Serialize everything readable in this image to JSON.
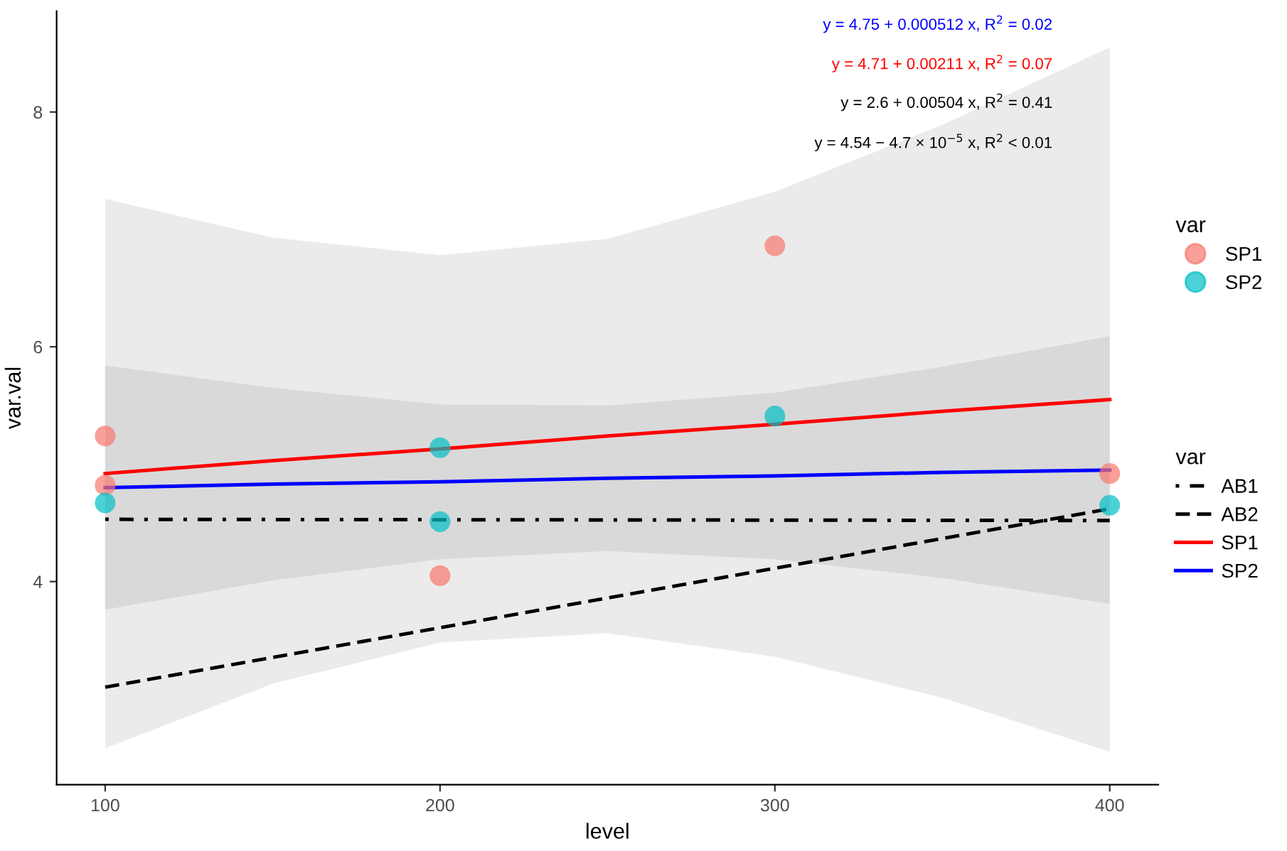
{
  "chart_data": {
    "type": "line",
    "xlabel": "level",
    "ylabel": "var.val",
    "legend_title": "var",
    "xlim": [
      85.5,
      414.5
    ],
    "ylim": [
      2.27,
      8.86
    ],
    "xticks": [
      100,
      200,
      300,
      400
    ],
    "yticks": [
      4,
      6,
      8
    ],
    "grid": false,
    "legend": "right",
    "series": [
      {
        "name": "SP1",
        "type": "scatter",
        "marker": "circle",
        "color": "#f8766d",
        "x": [
          100,
          100,
          200,
          300,
          400
        ],
        "values": [
          5.24,
          4.82,
          4.05,
          6.86,
          4.92
        ]
      },
      {
        "name": "SP2",
        "type": "scatter",
        "marker": "circle",
        "color": "#00bfc4",
        "x": [
          100,
          200,
          200,
          300,
          400
        ],
        "values": [
          4.67,
          5.14,
          4.51,
          5.41,
          4.65
        ]
      },
      {
        "name": "AB1",
        "type": "line",
        "line_style": "dashdot",
        "color": "#000000",
        "x": [
          100,
          400
        ],
        "values": [
          4.53,
          4.52
        ]
      },
      {
        "name": "AB2",
        "type": "line",
        "line_style": "dashed",
        "color": "#000000",
        "x": [
          100,
          400
        ],
        "values": [
          3.1,
          4.62
        ]
      },
      {
        "name": "SP1",
        "type": "line",
        "line_style": "solid",
        "color": "#ff0000",
        "x": [
          100,
          150,
          200,
          250,
          300,
          350,
          400
        ],
        "values": [
          4.92,
          5.03,
          5.13,
          5.24,
          5.34,
          5.45,
          5.55
        ],
        "lower": [
          2.58,
          3.13,
          3.48,
          3.56,
          3.36,
          3.01,
          2.55
        ],
        "upper": [
          7.26,
          6.93,
          6.78,
          6.92,
          7.32,
          7.89,
          8.55
        ]
      },
      {
        "name": "SP2",
        "type": "line",
        "line_style": "solid",
        "color": "#0000ff",
        "x": [
          100,
          150,
          200,
          250,
          300,
          350,
          400
        ],
        "values": [
          4.8,
          4.83,
          4.85,
          4.88,
          4.9,
          4.93,
          4.95
        ],
        "lower": [
          3.76,
          4.01,
          4.19,
          4.26,
          4.19,
          4.03,
          3.81
        ],
        "upper": [
          5.84,
          5.65,
          5.51,
          5.5,
          5.61,
          5.83,
          6.09
        ]
      }
    ],
    "annotations": [
      "y = 4.75 + 0.000512 x, R$^{2}$ = 0.02",
      "y = 4.71 + 0.00211 x, R$^{2}$ = 0.07",
      "y = 2.6 + 0.00504 x, R$^{2}$ = 0.41",
      "y = 4.54 − 4.7 × 10$^{−5}$ x, R$^{2}$ < 0.01"
    ]
  }
}
